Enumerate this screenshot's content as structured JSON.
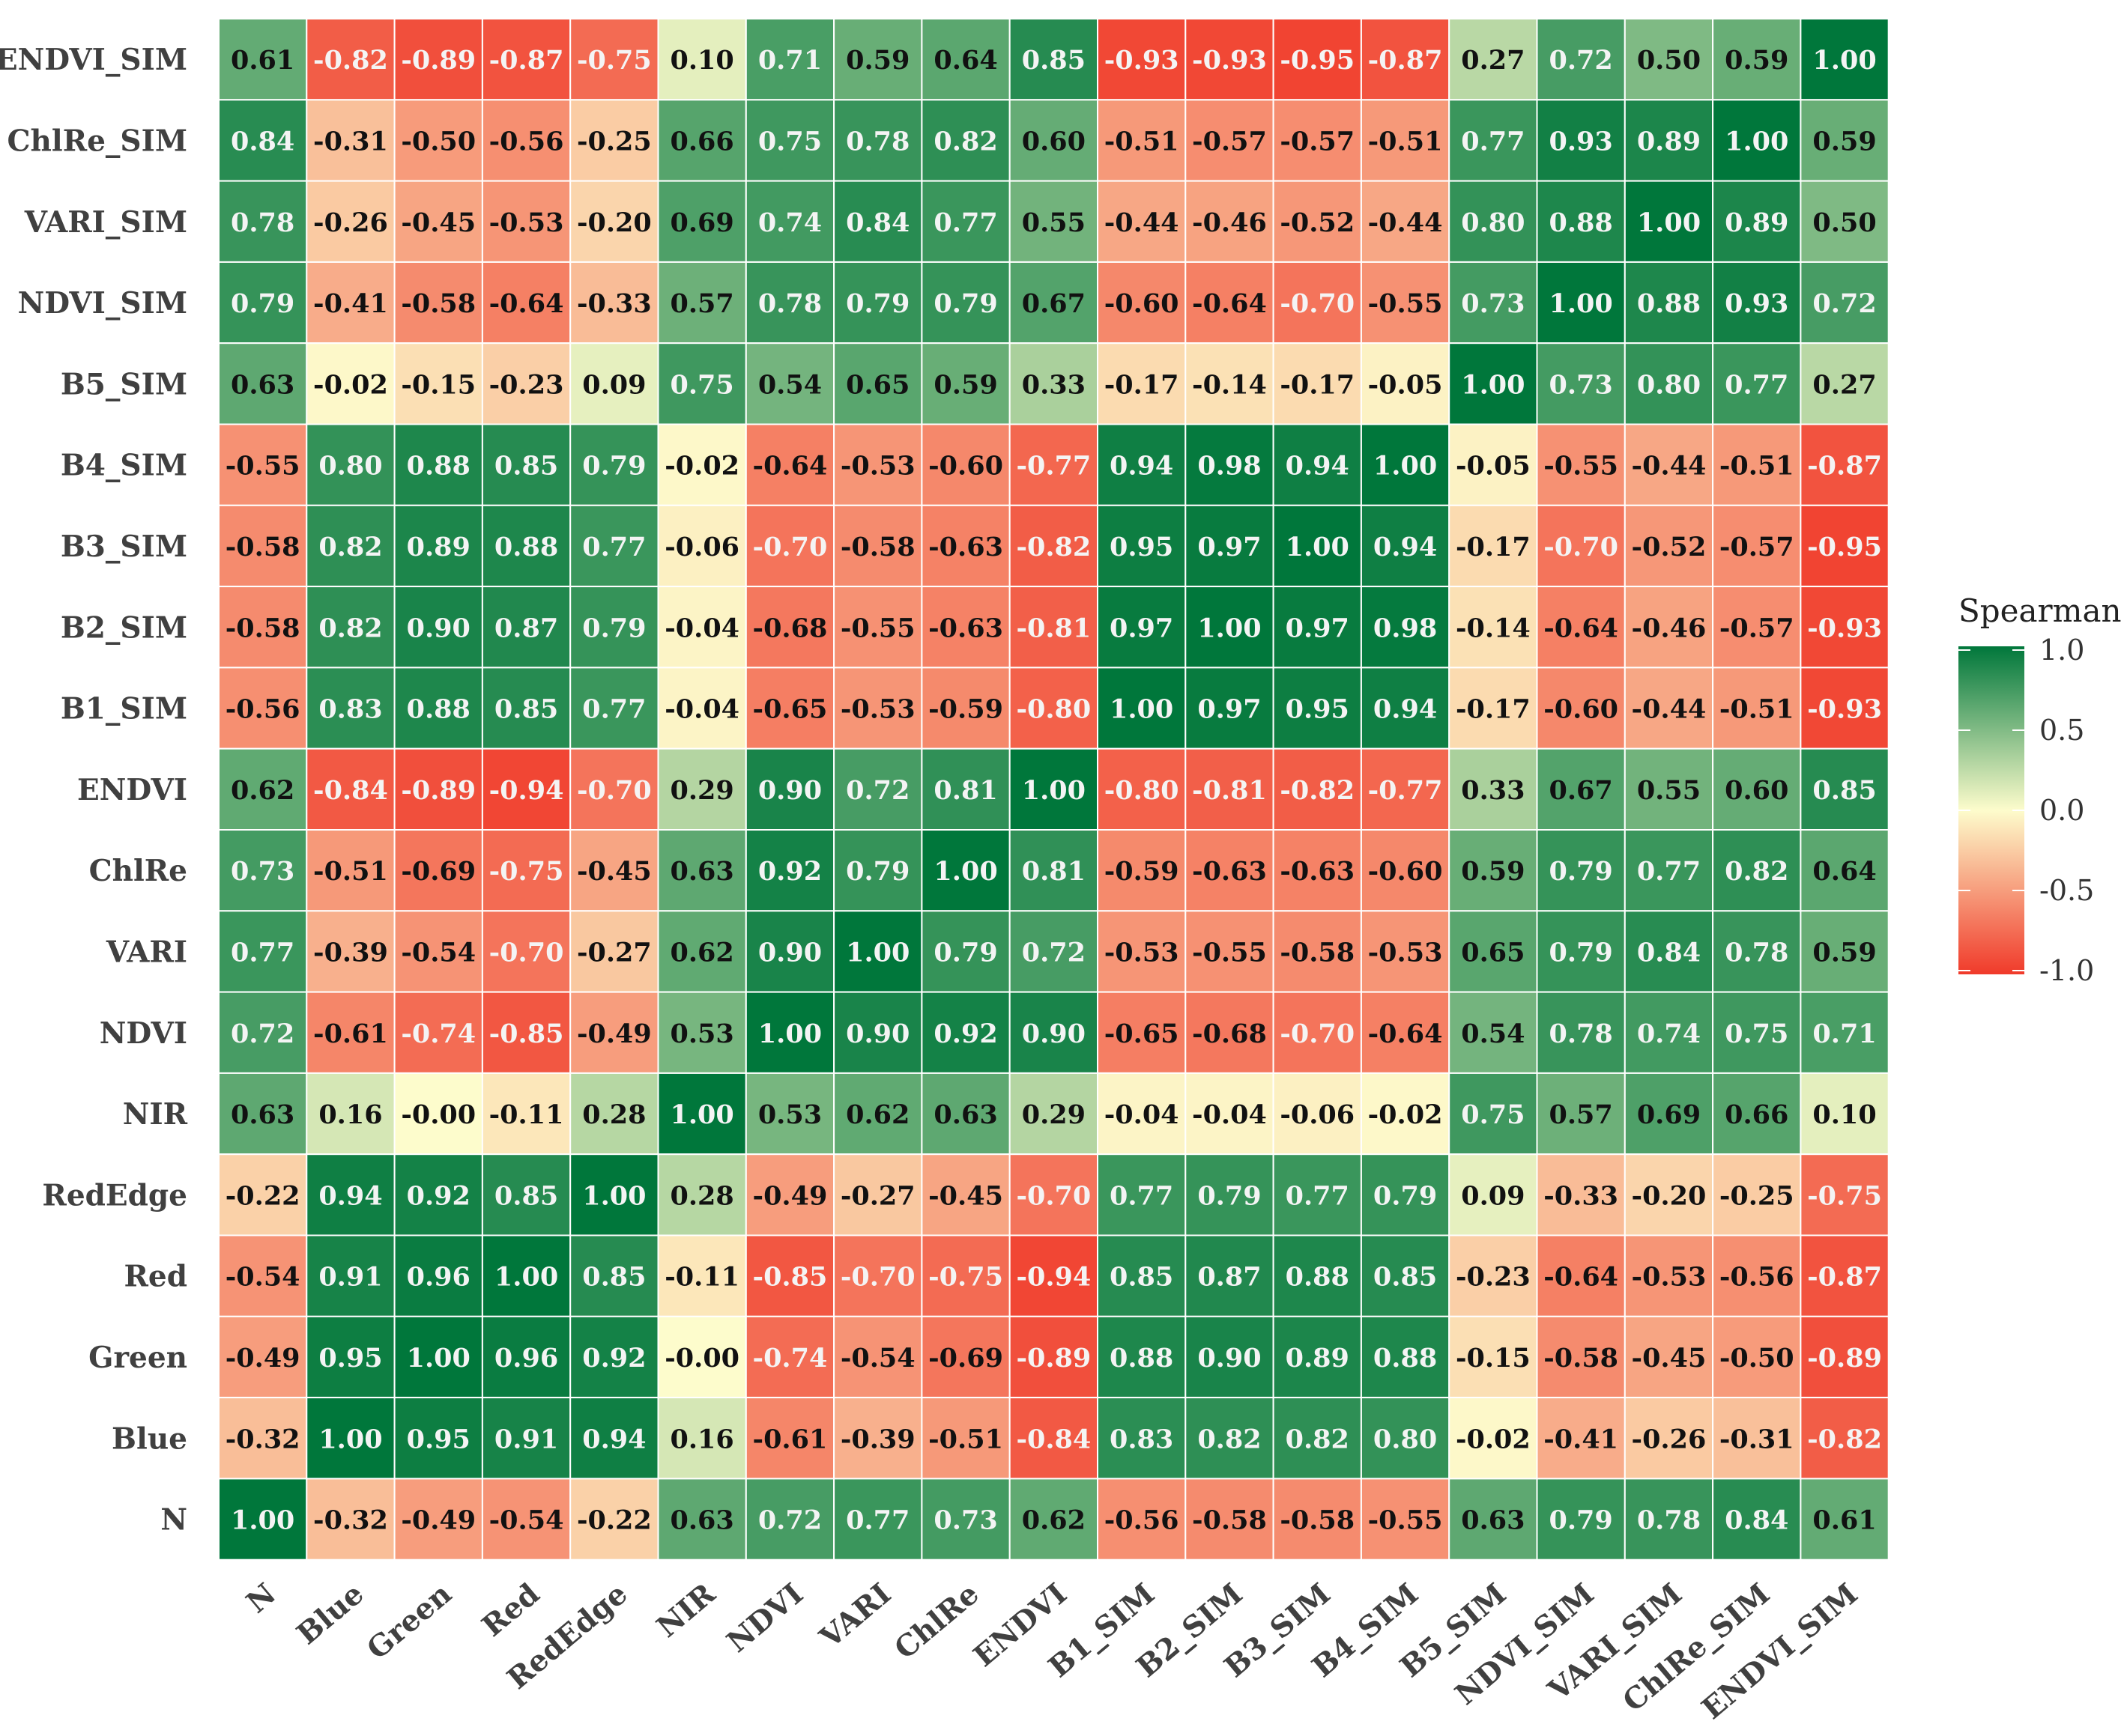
{
  "chart_data": {
    "type": "heatmap",
    "legend": {
      "title": "Spearman",
      "ticks": [
        "1.0",
        "0.5",
        "0.0",
        "-0.5",
        "-1.0"
      ],
      "placement": "right",
      "range": [
        -1.0,
        1.0
      ]
    },
    "colors": {
      "low": "#f03a2a",
      "mid": "#fdfccc",
      "high": "#00773b"
    },
    "columns": [
      "N",
      "Blue",
      "Green",
      "Red",
      "RedEdge",
      "NIR",
      "NDVI",
      "VARI",
      "ChlRe",
      "ENDVI",
      "B1_SIM",
      "B2_SIM",
      "B3_SIM",
      "B4_SIM",
      "B5_SIM",
      "NDVI_SIM",
      "VARI_SIM",
      "ChlRe_SIM",
      "ENDVI_SIM"
    ],
    "rows": [
      "ENDVI_SIM",
      "ChlRe_SIM",
      "VARI_SIM",
      "NDVI_SIM",
      "B5_SIM",
      "B4_SIM",
      "B3_SIM",
      "B2_SIM",
      "B1_SIM",
      "ENDVI",
      "ChlRe",
      "VARI",
      "NDVI",
      "NIR",
      "RedEdge",
      "Red",
      "Green",
      "Blue",
      "N"
    ],
    "values": [
      [
        "0.61",
        "-0.82",
        "-0.89",
        "-0.87",
        "-0.75",
        "0.10",
        "0.71",
        "0.59",
        "0.64",
        "0.85",
        "-0.93",
        "-0.93",
        "-0.95",
        "-0.87",
        "0.27",
        "0.72",
        "0.50",
        "0.59",
        "1.00"
      ],
      [
        "0.84",
        "-0.31",
        "-0.50",
        "-0.56",
        "-0.25",
        "0.66",
        "0.75",
        "0.78",
        "0.82",
        "0.60",
        "-0.51",
        "-0.57",
        "-0.57",
        "-0.51",
        "0.77",
        "0.93",
        "0.89",
        "1.00",
        "0.59"
      ],
      [
        "0.78",
        "-0.26",
        "-0.45",
        "-0.53",
        "-0.20",
        "0.69",
        "0.74",
        "0.84",
        "0.77",
        "0.55",
        "-0.44",
        "-0.46",
        "-0.52",
        "-0.44",
        "0.80",
        "0.88",
        "1.00",
        "0.89",
        "0.50"
      ],
      [
        "0.79",
        "-0.41",
        "-0.58",
        "-0.64",
        "-0.33",
        "0.57",
        "0.78",
        "0.79",
        "0.79",
        "0.67",
        "-0.60",
        "-0.64",
        "-0.70",
        "-0.55",
        "0.73",
        "1.00",
        "0.88",
        "0.93",
        "0.72"
      ],
      [
        "0.63",
        "-0.02",
        "-0.15",
        "-0.23",
        "0.09",
        "0.75",
        "0.54",
        "0.65",
        "0.59",
        "0.33",
        "-0.17",
        "-0.14",
        "-0.17",
        "-0.05",
        "1.00",
        "0.73",
        "0.80",
        "0.77",
        "0.27"
      ],
      [
        "-0.55",
        "0.80",
        "0.88",
        "0.85",
        "0.79",
        "-0.02",
        "-0.64",
        "-0.53",
        "-0.60",
        "-0.77",
        "0.94",
        "0.98",
        "0.94",
        "1.00",
        "-0.05",
        "-0.55",
        "-0.44",
        "-0.51",
        "-0.87"
      ],
      [
        "-0.58",
        "0.82",
        "0.89",
        "0.88",
        "0.77",
        "-0.06",
        "-0.70",
        "-0.58",
        "-0.63",
        "-0.82",
        "0.95",
        "0.97",
        "1.00",
        "0.94",
        "-0.17",
        "-0.70",
        "-0.52",
        "-0.57",
        "-0.95"
      ],
      [
        "-0.58",
        "0.82",
        "0.90",
        "0.87",
        "0.79",
        "-0.04",
        "-0.68",
        "-0.55",
        "-0.63",
        "-0.81",
        "0.97",
        "1.00",
        "0.97",
        "0.98",
        "-0.14",
        "-0.64",
        "-0.46",
        "-0.57",
        "-0.93"
      ],
      [
        "-0.56",
        "0.83",
        "0.88",
        "0.85",
        "0.77",
        "-0.04",
        "-0.65",
        "-0.53",
        "-0.59",
        "-0.80",
        "1.00",
        "0.97",
        "0.95",
        "0.94",
        "-0.17",
        "-0.60",
        "-0.44",
        "-0.51",
        "-0.93"
      ],
      [
        "0.62",
        "-0.84",
        "-0.89",
        "-0.94",
        "-0.70",
        "0.29",
        "0.90",
        "0.72",
        "0.81",
        "1.00",
        "-0.80",
        "-0.81",
        "-0.82",
        "-0.77",
        "0.33",
        "0.67",
        "0.55",
        "0.60",
        "0.85"
      ],
      [
        "0.73",
        "-0.51",
        "-0.69",
        "-0.75",
        "-0.45",
        "0.63",
        "0.92",
        "0.79",
        "1.00",
        "0.81",
        "-0.59",
        "-0.63",
        "-0.63",
        "-0.60",
        "0.59",
        "0.79",
        "0.77",
        "0.82",
        "0.64"
      ],
      [
        "0.77",
        "-0.39",
        "-0.54",
        "-0.70",
        "-0.27",
        "0.62",
        "0.90",
        "1.00",
        "0.79",
        "0.72",
        "-0.53",
        "-0.55",
        "-0.58",
        "-0.53",
        "0.65",
        "0.79",
        "0.84",
        "0.78",
        "0.59"
      ],
      [
        "0.72",
        "-0.61",
        "-0.74",
        "-0.85",
        "-0.49",
        "0.53",
        "1.00",
        "0.90",
        "0.92",
        "0.90",
        "-0.65",
        "-0.68",
        "-0.70",
        "-0.64",
        "0.54",
        "0.78",
        "0.74",
        "0.75",
        "0.71"
      ],
      [
        "0.63",
        "0.16",
        "-0.00",
        "-0.11",
        "0.28",
        "1.00",
        "0.53",
        "0.62",
        "0.63",
        "0.29",
        "-0.04",
        "-0.04",
        "-0.06",
        "-0.02",
        "0.75",
        "0.57",
        "0.69",
        "0.66",
        "0.10"
      ],
      [
        "-0.22",
        "0.94",
        "0.92",
        "0.85",
        "1.00",
        "0.28",
        "-0.49",
        "-0.27",
        "-0.45",
        "-0.70",
        "0.77",
        "0.79",
        "0.77",
        "0.79",
        "0.09",
        "-0.33",
        "-0.20",
        "-0.25",
        "-0.75"
      ],
      [
        "-0.54",
        "0.91",
        "0.96",
        "1.00",
        "0.85",
        "-0.11",
        "-0.85",
        "-0.70",
        "-0.75",
        "-0.94",
        "0.85",
        "0.87",
        "0.88",
        "0.85",
        "-0.23",
        "-0.64",
        "-0.53",
        "-0.56",
        "-0.87"
      ],
      [
        "-0.49",
        "0.95",
        "1.00",
        "0.96",
        "0.92",
        "-0.00",
        "-0.74",
        "-0.54",
        "-0.69",
        "-0.89",
        "0.88",
        "0.90",
        "0.89",
        "0.88",
        "-0.15",
        "-0.58",
        "-0.45",
        "-0.50",
        "-0.89"
      ],
      [
        "-0.32",
        "1.00",
        "0.95",
        "0.91",
        "0.94",
        "0.16",
        "-0.61",
        "-0.39",
        "-0.51",
        "-0.84",
        "0.83",
        "0.82",
        "0.82",
        "0.80",
        "-0.02",
        "-0.41",
        "-0.26",
        "-0.31",
        "-0.82"
      ],
      [
        "1.00",
        "-0.32",
        "-0.49",
        "-0.54",
        "-0.22",
        "0.63",
        "0.72",
        "0.77",
        "0.73",
        "0.62",
        "-0.56",
        "-0.58",
        "-0.58",
        "-0.55",
        "0.63",
        "0.79",
        "0.78",
        "0.84",
        "0.61"
      ]
    ]
  }
}
